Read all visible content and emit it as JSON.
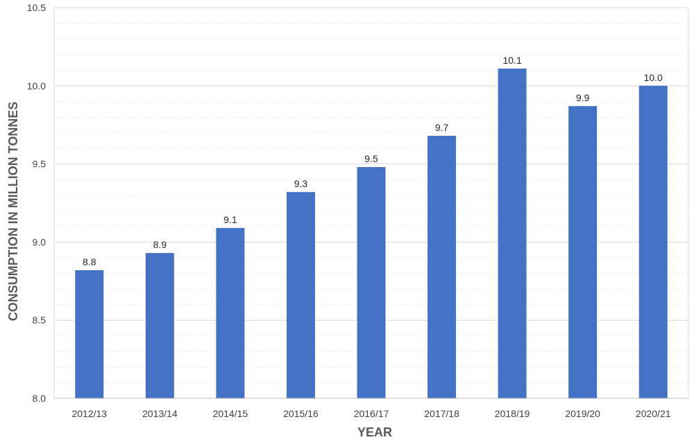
{
  "chart_data": {
    "type": "bar",
    "title": "",
    "xlabel": "YEAR",
    "ylabel": "CONSUMPTION IN MILLION TONNES",
    "categories": [
      "2012/13",
      "2013/14",
      "2014/15",
      "2015/16",
      "2016/17",
      "2017/18",
      "2018/19",
      "2019/20",
      "2020/21"
    ],
    "values": [
      8.82,
      8.93,
      9.09,
      9.32,
      9.48,
      9.68,
      10.11,
      9.87,
      10.0
    ],
    "data_labels": [
      "8.8",
      "8.9",
      "9.1",
      "9.3",
      "9.5",
      "9.7",
      "10.1",
      "9.9",
      "10.0"
    ],
    "ylim": [
      8.0,
      10.5
    ],
    "y_ticks": [
      8.0,
      8.5,
      9.0,
      9.5,
      10.0,
      10.5
    ],
    "y_tick_labels": [
      "8.0",
      "8.5",
      "9.0",
      "9.5",
      "10.0",
      "10.5"
    ],
    "grid": true,
    "legend": "none",
    "colors": {
      "bar": "#4472C4",
      "grid": "#D9D9D9",
      "minor_grid": "#EDEDED"
    }
  }
}
